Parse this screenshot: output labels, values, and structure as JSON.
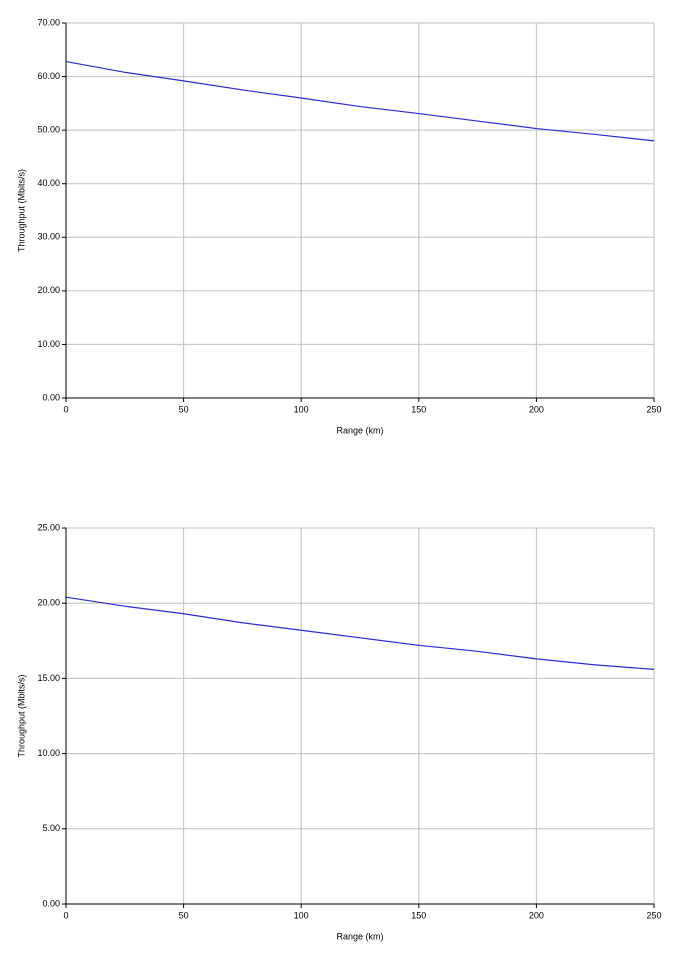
{
  "chart_data": [
    {
      "type": "line",
      "x_label": "Range (km)",
      "y_label": "Throughput (Mbits/s)",
      "x": [
        0,
        25,
        50,
        75,
        100,
        125,
        150,
        175,
        200,
        225,
        250
      ],
      "series": [
        {
          "color": "#2a2ad8",
          "values": [
            62.8,
            60.8,
            59.2,
            57.5,
            56.0,
            54.4,
            53.1,
            51.7,
            50.3,
            49.2,
            48.0
          ]
        }
      ],
      "xlim": [
        0,
        250
      ],
      "xticks": [
        0,
        50,
        100,
        150,
        200,
        250
      ],
      "ylim": [
        0,
        70
      ],
      "yticks": [
        {
          "value": 0,
          "label": "0.00"
        },
        {
          "value": 10,
          "label": "10.00"
        },
        {
          "value": 20,
          "label": "20.00"
        },
        {
          "value": 30,
          "label": "30.00"
        },
        {
          "value": 40,
          "label": "40.00"
        },
        {
          "value": 50,
          "label": "50.00"
        },
        {
          "value": 60,
          "label": "60.00"
        },
        {
          "value": 70,
          "label": "70.00"
        }
      ],
      "grid": true
    },
    {
      "type": "line",
      "x_label": "Range (km)",
      "y_label": "Throughput (Mbits/s)",
      "x": [
        0,
        25,
        50,
        75,
        100,
        125,
        150,
        175,
        200,
        225,
        250
      ],
      "series": [
        {
          "color": "#2a2ad8",
          "values": [
            20.4,
            19.8,
            19.3,
            18.7,
            18.2,
            17.7,
            17.2,
            16.8,
            16.3,
            15.9,
            15.6
          ]
        }
      ],
      "xlim": [
        0,
        250
      ],
      "xticks": [
        0,
        50,
        100,
        150,
        200,
        250
      ],
      "ylim": [
        0,
        25
      ],
      "yticks": [
        {
          "value": 0,
          "label": "0.00"
        },
        {
          "value": 5,
          "label": "5.00"
        },
        {
          "value": 10,
          "label": "10.00"
        },
        {
          "value": 15,
          "label": "15.00"
        },
        {
          "value": 20,
          "label": "20.00"
        },
        {
          "value": 25,
          "label": "25.00"
        }
      ],
      "grid": true
    }
  ]
}
